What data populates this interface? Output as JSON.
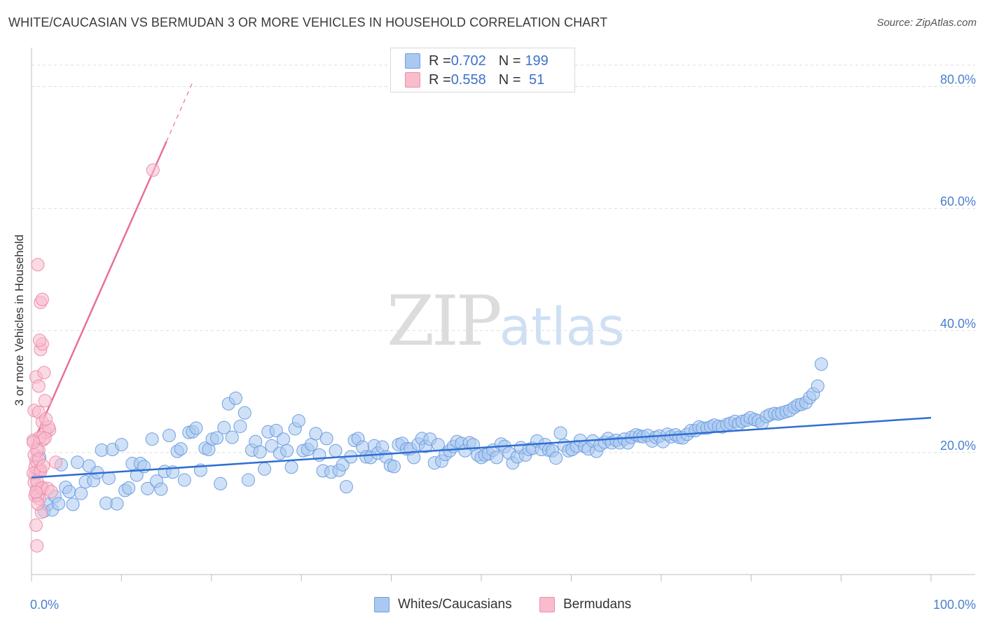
{
  "title": "WHITE/CAUCASIAN VS BERMUDAN 3 OR MORE VEHICLES IN HOUSEHOLD CORRELATION CHART",
  "source": "Source: ZipAtlas.com",
  "watermark": {
    "zip": "ZIP",
    "atlas": "atlas"
  },
  "legend": {
    "rows": [
      {
        "r_label": "R = ",
        "r_value": "0.702",
        "n_label": "N = ",
        "n_value": "199"
      },
      {
        "r_label": "R = ",
        "r_value": "0.558",
        "n_label": "N = ",
        "n_value": " 51"
      }
    ]
  },
  "bottom_legend": {
    "series1": "Whites/Caucasians",
    "series2": "Bermudans"
  },
  "colors": {
    "blue_fill": "#aac8f0",
    "blue_stroke": "#6f9fe0",
    "blue_line": "#2f6fd0",
    "pink_fill": "#f8bccd",
    "pink_stroke": "#ec8fab",
    "pink_line": "#e8709a",
    "grid": "#dedede",
    "axis_text": "#4a7fd0"
  },
  "chart_data": {
    "type": "scatter",
    "title": "WHITE/CAUCASIAN VS BERMUDAN 3 OR MORE VEHICLES IN HOUSEHOLD CORRELATION CHART",
    "xlabel": "",
    "ylabel": "3 or more Vehicles in Household",
    "xlim": [
      0,
      100
    ],
    "ylim": [
      0,
      85
    ],
    "x_tick_labels": [
      "0.0%",
      "100.0%"
    ],
    "y_ticks": [
      20,
      40,
      60,
      80
    ],
    "y_tick_labels": [
      "20.0%",
      "40.0%",
      "60.0%",
      "80.0%"
    ],
    "series": [
      {
        "name": "Whites/Caucasians",
        "r": 0.702,
        "n": 199,
        "trend": {
          "x0": 0,
          "y0": 15.9,
          "x1": 100,
          "y1": 25.7
        },
        "points": [
          [
            0.9,
            19.2
          ],
          [
            1.4,
            10.4
          ],
          [
            1.8,
            11.5
          ],
          [
            2.3,
            10.6
          ],
          [
            2.6,
            12.8
          ],
          [
            3.0,
            11.6
          ],
          [
            3.3,
            18.0
          ],
          [
            3.8,
            14.3
          ],
          [
            4.2,
            13.6
          ],
          [
            4.6,
            11.5
          ],
          [
            5.1,
            18.4
          ],
          [
            5.5,
            13.3
          ],
          [
            6.0,
            15.2
          ],
          [
            6.4,
            17.8
          ],
          [
            6.9,
            15.4
          ],
          [
            7.3,
            16.7
          ],
          [
            7.8,
            20.4
          ],
          [
            8.3,
            11.7
          ],
          [
            8.6,
            15.8
          ],
          [
            9.0,
            20.5
          ],
          [
            9.5,
            11.6
          ],
          [
            10.0,
            21.3
          ],
          [
            10.4,
            13.8
          ],
          [
            10.8,
            14.2
          ],
          [
            11.2,
            18.2
          ],
          [
            11.7,
            16.3
          ],
          [
            12.1,
            18.2
          ],
          [
            12.5,
            17.7
          ],
          [
            12.9,
            14.1
          ],
          [
            13.4,
            22.2
          ],
          [
            13.9,
            15.3
          ],
          [
            14.4,
            14.0
          ],
          [
            14.8,
            16.9
          ],
          [
            15.3,
            22.8
          ],
          [
            15.7,
            16.8
          ],
          [
            16.2,
            20.2
          ],
          [
            16.6,
            20.6
          ],
          [
            17.0,
            15.5
          ],
          [
            17.5,
            23.3
          ],
          [
            17.9,
            23.4
          ],
          [
            18.3,
            24.0
          ],
          [
            18.8,
            17.1
          ],
          [
            19.3,
            20.7
          ],
          [
            19.7,
            20.5
          ],
          [
            20.1,
            22.2
          ],
          [
            20.6,
            22.4
          ],
          [
            21.0,
            14.9
          ],
          [
            21.4,
            24.1
          ],
          [
            21.9,
            28.0
          ],
          [
            22.3,
            22.5
          ],
          [
            22.7,
            28.9
          ],
          [
            23.2,
            24.3
          ],
          [
            23.7,
            26.5
          ],
          [
            24.1,
            15.5
          ],
          [
            24.5,
            20.4
          ],
          [
            24.9,
            21.8
          ],
          [
            25.4,
            20.1
          ],
          [
            25.9,
            17.3
          ],
          [
            26.3,
            23.4
          ],
          [
            26.7,
            21.1
          ],
          [
            27.2,
            23.6
          ],
          [
            27.6,
            19.9
          ],
          [
            28.0,
            22.2
          ],
          [
            28.4,
            20.3
          ],
          [
            28.9,
            17.6
          ],
          [
            29.3,
            23.9
          ],
          [
            29.7,
            25.2
          ],
          [
            30.2,
            20.3
          ],
          [
            30.7,
            20.5
          ],
          [
            31.1,
            21.3
          ],
          [
            31.6,
            23.1
          ],
          [
            32.0,
            19.6
          ],
          [
            32.4,
            17.0
          ],
          [
            32.8,
            22.3
          ],
          [
            33.3,
            16.8
          ],
          [
            33.8,
            20.3
          ],
          [
            34.2,
            17.1
          ],
          [
            34.6,
            18.0
          ],
          [
            35.0,
            14.4
          ],
          [
            35.5,
            19.3
          ],
          [
            35.9,
            22.0
          ],
          [
            36.3,
            22.3
          ],
          [
            36.8,
            20.9
          ],
          [
            37.2,
            19.3
          ],
          [
            37.7,
            19.2
          ],
          [
            38.1,
            21.1
          ],
          [
            38.5,
            19.9
          ],
          [
            39.0,
            20.9
          ],
          [
            39.4,
            19.3
          ],
          [
            39.9,
            17.9
          ],
          [
            40.3,
            17.7
          ],
          [
            40.8,
            21.3
          ],
          [
            41.2,
            21.5
          ],
          [
            41.7,
            20.6
          ],
          [
            42.1,
            20.6
          ],
          [
            42.5,
            19.2
          ],
          [
            43.0,
            21.4
          ],
          [
            43.4,
            22.3
          ],
          [
            43.8,
            21.0
          ],
          [
            44.3,
            22.2
          ],
          [
            44.8,
            18.3
          ],
          [
            45.2,
            21.3
          ],
          [
            45.6,
            18.6
          ],
          [
            46.0,
            19.7
          ],
          [
            46.5,
            20.3
          ],
          [
            46.9,
            21.0
          ],
          [
            47.3,
            21.8
          ],
          [
            47.8,
            21.5
          ],
          [
            48.2,
            20.3
          ],
          [
            48.7,
            21.6
          ],
          [
            49.1,
            21.3
          ],
          [
            49.6,
            19.6
          ],
          [
            50.0,
            19.2
          ],
          [
            50.4,
            19.6
          ],
          [
            50.8,
            19.8
          ],
          [
            51.3,
            20.4
          ],
          [
            51.7,
            19.2
          ],
          [
            52.2,
            21.4
          ],
          [
            52.6,
            21.0
          ],
          [
            53.1,
            19.9
          ],
          [
            53.5,
            18.3
          ],
          [
            54.0,
            19.3
          ],
          [
            54.4,
            20.8
          ],
          [
            54.9,
            19.6
          ],
          [
            55.3,
            20.5
          ],
          [
            55.7,
            20.7
          ],
          [
            56.2,
            21.9
          ],
          [
            56.7,
            20.5
          ],
          [
            57.1,
            21.3
          ],
          [
            57.5,
            20.4
          ],
          [
            57.9,
            20.3
          ],
          [
            58.3,
            19.1
          ],
          [
            58.8,
            23.2
          ],
          [
            59.2,
            21.2
          ],
          [
            59.7,
            20.3
          ],
          [
            60.1,
            20.5
          ],
          [
            60.6,
            21.0
          ],
          [
            61.0,
            22.0
          ],
          [
            61.5,
            21.0
          ],
          [
            61.9,
            20.6
          ],
          [
            62.4,
            21.9
          ],
          [
            62.8,
            20.2
          ],
          [
            63.2,
            21.2
          ],
          [
            63.7,
            21.7
          ],
          [
            64.1,
            22.3
          ],
          [
            64.5,
            21.6
          ],
          [
            65.0,
            22.0
          ],
          [
            65.4,
            21.6
          ],
          [
            65.9,
            22.2
          ],
          [
            66.3,
            21.6
          ],
          [
            66.7,
            22.5
          ],
          [
            67.2,
            22.9
          ],
          [
            67.6,
            22.7
          ],
          [
            68.0,
            22.6
          ],
          [
            68.5,
            22.8
          ],
          [
            69.0,
            21.9
          ],
          [
            69.4,
            22.5
          ],
          [
            69.8,
            22.7
          ],
          [
            70.2,
            21.8
          ],
          [
            70.7,
            23.0
          ],
          [
            71.1,
            22.6
          ],
          [
            71.6,
            22.9
          ],
          [
            72.0,
            22.5
          ],
          [
            72.4,
            22.4
          ],
          [
            72.9,
            23.0
          ],
          [
            73.3,
            23.6
          ],
          [
            73.8,
            23.6
          ],
          [
            74.2,
            24.2
          ],
          [
            74.6,
            24.0
          ],
          [
            75.1,
            24.0
          ],
          [
            75.5,
            24.2
          ],
          [
            75.9,
            24.5
          ],
          [
            76.4,
            24.3
          ],
          [
            76.8,
            24.2
          ],
          [
            77.3,
            24.6
          ],
          [
            77.7,
            24.8
          ],
          [
            78.2,
            25.1
          ],
          [
            78.6,
            24.7
          ],
          [
            79.0,
            25.1
          ],
          [
            79.5,
            25.3
          ],
          [
            79.9,
            25.7
          ],
          [
            80.4,
            25.4
          ],
          [
            80.8,
            25.2
          ],
          [
            81.2,
            24.8
          ],
          [
            81.7,
            25.9
          ],
          [
            82.1,
            26.2
          ],
          [
            82.6,
            26.4
          ],
          [
            83.0,
            26.3
          ],
          [
            83.4,
            26.5
          ],
          [
            83.9,
            26.7
          ],
          [
            84.3,
            26.9
          ],
          [
            84.8,
            27.4
          ],
          [
            85.2,
            27.8
          ],
          [
            85.6,
            27.9
          ],
          [
            86.1,
            28.2
          ],
          [
            86.5,
            29.0
          ],
          [
            86.9,
            29.6
          ],
          [
            87.4,
            30.9
          ],
          [
            87.8,
            34.5
          ]
        ]
      },
      {
        "name": "Bermudans",
        "r": 0.558,
        "n": 51,
        "trend": {
          "x0": 0,
          "y0": 21.0,
          "x1": 15,
          "y1": 71.0,
          "dash_x1": 18,
          "dash_y1": 81.0
        },
        "points": [
          [
            0.2,
            22.0
          ],
          [
            0.4,
            16.3
          ],
          [
            0.5,
            18.6
          ],
          [
            0.7,
            17.0
          ],
          [
            0.8,
            20.4
          ],
          [
            1.0,
            17.2
          ],
          [
            0.3,
            15.1
          ],
          [
            0.6,
            14.0
          ],
          [
            0.9,
            12.4
          ],
          [
            1.2,
            14.3
          ],
          [
            0.4,
            12.9
          ],
          [
            0.7,
            13.0
          ],
          [
            1.1,
            10.2
          ],
          [
            0.5,
            8.1
          ],
          [
            0.6,
            4.7
          ],
          [
            0.3,
            26.9
          ],
          [
            0.8,
            26.6
          ],
          [
            1.2,
            25.0
          ],
          [
            1.5,
            28.5
          ],
          [
            0.5,
            32.4
          ],
          [
            0.8,
            30.9
          ],
          [
            1.4,
            33.1
          ],
          [
            1.0,
            36.9
          ],
          [
            1.2,
            37.8
          ],
          [
            0.9,
            38.4
          ],
          [
            1.0,
            44.6
          ],
          [
            1.2,
            45.1
          ],
          [
            0.7,
            50.8
          ],
          [
            1.3,
            22.1
          ],
          [
            1.6,
            23.3
          ],
          [
            2.0,
            23.7
          ],
          [
            0.9,
            22.5
          ],
          [
            1.5,
            22.4
          ],
          [
            0.3,
            19.6
          ],
          [
            0.6,
            20.4
          ],
          [
            1.9,
            24.2
          ],
          [
            2.7,
            18.4
          ],
          [
            0.4,
            17.6
          ],
          [
            0.2,
            16.6
          ],
          [
            0.8,
            18.9
          ],
          [
            1.0,
            16.9
          ],
          [
            1.3,
            17.8
          ],
          [
            0.6,
            15.3
          ],
          [
            1.1,
            14.1
          ],
          [
            0.5,
            13.5
          ],
          [
            1.8,
            14.1
          ],
          [
            0.7,
            11.6
          ],
          [
            2.2,
            13.6
          ],
          [
            0.2,
            21.7
          ],
          [
            1.6,
            25.5
          ],
          [
            13.5,
            66.3
          ]
        ]
      }
    ]
  }
}
